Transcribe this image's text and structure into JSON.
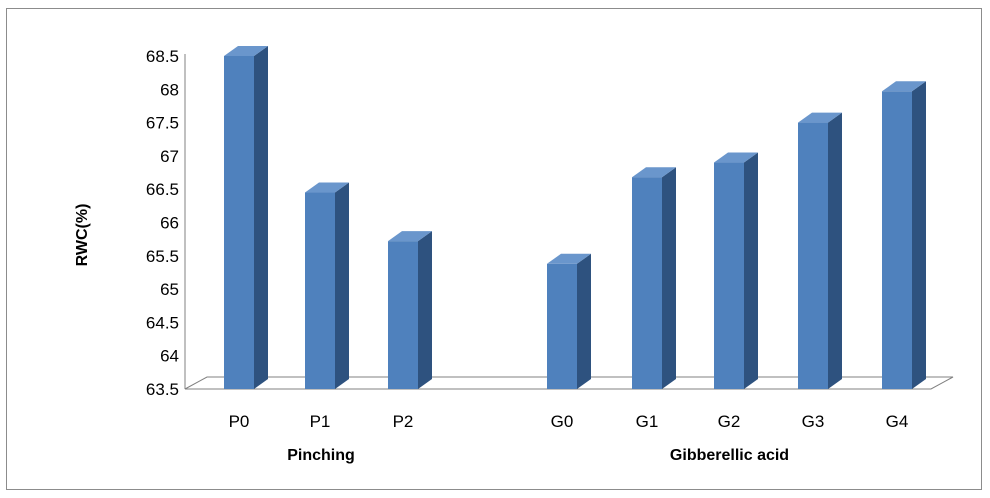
{
  "chart_data": {
    "type": "bar",
    "title": "",
    "ylabel": "RWC(%)",
    "ylim": [
      63.5,
      68.5
    ],
    "yticks": [
      "68.5",
      "68",
      "67.5",
      "67",
      "66.5",
      "66",
      "65.5",
      "65",
      "64.5",
      "64",
      "63.5"
    ],
    "categories": [
      "P0",
      "P1",
      "P2",
      "G0",
      "G1",
      "G2",
      "G3",
      "G4"
    ],
    "values": [
      68.5,
      66.45,
      65.72,
      65.38,
      66.68,
      66.9,
      67.5,
      67.97
    ],
    "groups": [
      {
        "label": "Pinching",
        "categories": [
          "P0",
          "P1",
          "P2"
        ]
      },
      {
        "label": "Gibberellic acid",
        "categories": [
          "G0",
          "G1",
          "G2",
          "G3",
          "G4"
        ]
      }
    ],
    "style": "3d-column",
    "grid": false,
    "colors": {
      "bar_front": "#4f81bd",
      "bar_side": "#2e527f",
      "bar_top": "#6a96cc",
      "floor": "#ffffff",
      "axis": "#808080"
    }
  }
}
